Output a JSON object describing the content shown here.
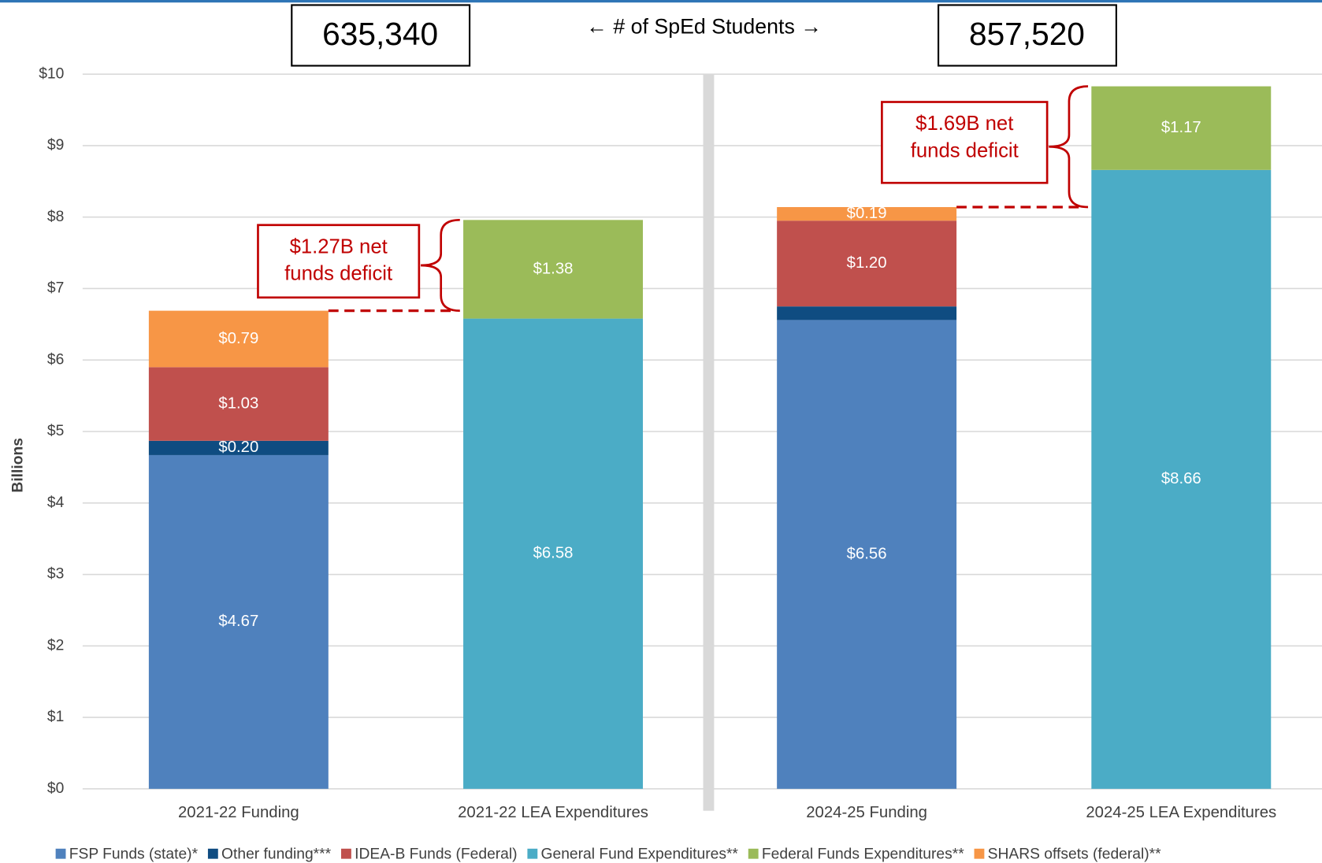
{
  "chart_data": {
    "type": "stacked_bar",
    "y_label": "Billions",
    "categories": [
      "2021-22 Funding",
      "2021-22 LEA Expenditures",
      "2024-25 Funding",
      "2024-25 LEA Expenditures"
    ],
    "series": [
      {
        "name": "FSP Funds (state)*",
        "color": "#4f81bd",
        "values": [
          4.67,
          null,
          6.56,
          null
        ],
        "value_labels": [
          "$4.67",
          null,
          "$6.56",
          null
        ]
      },
      {
        "name": "Other funding***",
        "color": "#0f4c81",
        "values": [
          0.2,
          null,
          0.19,
          null
        ],
        "value_labels": [
          "$0.20",
          null,
          null,
          null
        ]
      },
      {
        "name": "IDEA-B Funds (Federal)",
        "color": "#c0504d",
        "values": [
          1.03,
          null,
          1.2,
          null
        ],
        "value_labels": [
          "$1.03",
          null,
          "$1.20",
          null
        ]
      },
      {
        "name": "General Fund Expenditures**",
        "color": "#4bacc6",
        "values": [
          null,
          6.58,
          null,
          8.66
        ],
        "value_labels": [
          null,
          "$6.58",
          null,
          "$8.66"
        ]
      },
      {
        "name": "Federal Funds Expenditures**",
        "color": "#9bbb59",
        "values": [
          null,
          1.38,
          null,
          1.17
        ],
        "value_labels": [
          null,
          "$1.38",
          null,
          "$1.17"
        ]
      },
      {
        "name": "SHARS offsets (federal)**",
        "color": "#f79646",
        "values": [
          0.79,
          null,
          0.19,
          null
        ],
        "value_labels": [
          "$0.79",
          null,
          "$0.19",
          null
        ]
      }
    ],
    "ylim": [
      0,
      10
    ],
    "yticks": [
      {
        "value": 0,
        "label": "$0"
      },
      {
        "value": 1,
        "label": "$1"
      },
      {
        "value": 2,
        "label": "$2"
      },
      {
        "value": 3,
        "label": "$3"
      },
      {
        "value": 4,
        "label": "$4"
      },
      {
        "value": 5,
        "label": "$5"
      },
      {
        "value": 6,
        "label": "$6"
      },
      {
        "value": 7,
        "label": "$7"
      },
      {
        "value": 8,
        "label": "$8"
      },
      {
        "value": 9,
        "label": "$9"
      },
      {
        "value": 10,
        "label": "$10"
      }
    ],
    "grid": true,
    "legend": "bottom",
    "annotations": {
      "students_label": "← # of SpEd Students →",
      "students_2021": "635,340",
      "students_2024": "857,520",
      "deficit_2021": [
        "$1.27B net",
        "funds deficit"
      ],
      "deficit_2024": [
        "$1.69B net",
        "funds deficit"
      ]
    }
  }
}
